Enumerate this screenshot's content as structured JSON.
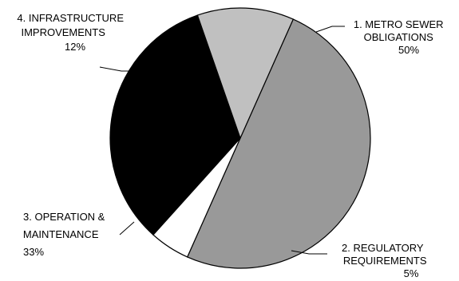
{
  "chart_data": {
    "type": "pie",
    "slices": [
      {
        "name_lines": [
          "1. METRO SEWER",
          "OBLIGATIONS"
        ],
        "pct_label": "50%",
        "value": 50,
        "color": "#999999"
      },
      {
        "name_lines": [
          "2. REGULATORY",
          "REQUIREMENTS"
        ],
        "pct_label": "5%",
        "value": 5,
        "color": "#ffffff"
      },
      {
        "name_lines": [
          "3. OPERATION &",
          "MAINTENANCE"
        ],
        "pct_label": "33%",
        "value": 33,
        "color": "#000000"
      },
      {
        "name_lines": [
          "4. INFRASTRUCTURE",
          "IMPROVEMENTS"
        ],
        "pct_label": "12%",
        "value": 12,
        "color": "#c0c0c0"
      }
    ],
    "start_angle_deg": -66,
    "direction": "clockwise",
    "legend": "none"
  }
}
